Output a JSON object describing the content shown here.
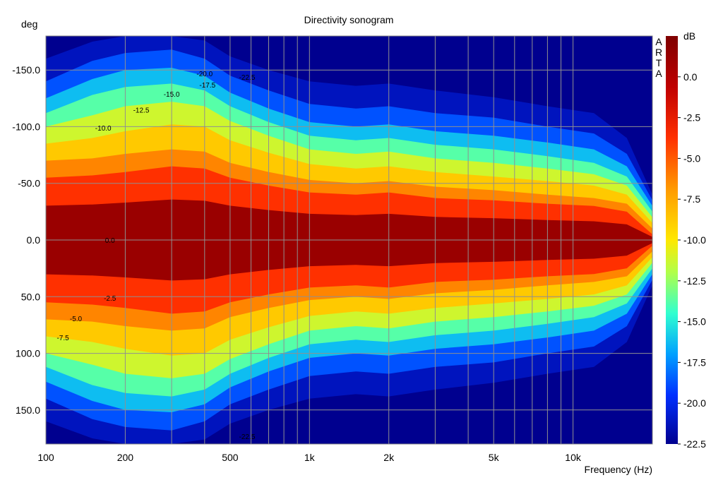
{
  "chart_data": {
    "type": "heatmap",
    "title": "Directivity sonogram",
    "xlabel": "Frequency (Hz)",
    "ylabel": "deg",
    "xscale": "log",
    "xlim": [
      100,
      20000
    ],
    "ylim": [
      180,
      -180
    ],
    "x_ticks": [
      {
        "value": 100,
        "label": "100"
      },
      {
        "value": 200,
        "label": "200"
      },
      {
        "value": 500,
        "label": "500"
      },
      {
        "value": 1000,
        "label": "1k"
      },
      {
        "value": 2000,
        "label": "2k"
      },
      {
        "value": 5000,
        "label": "5k"
      },
      {
        "value": 10000,
        "label": "10k"
      }
    ],
    "x_minor_gridlines": [
      300,
      400,
      600,
      700,
      800,
      900,
      3000,
      4000,
      6000,
      7000,
      8000,
      9000
    ],
    "y_ticks": [
      {
        "value": -150,
        "label": "-150.0"
      },
      {
        "value": -100,
        "label": "-100.0"
      },
      {
        "value": -50,
        "label": "-50.0"
      },
      {
        "value": 0,
        "label": "0.0"
      },
      {
        "value": 50,
        "label": "50.0"
      },
      {
        "value": 100,
        "label": "100.0"
      },
      {
        "value": 150,
        "label": "150.0"
      }
    ],
    "grid": true,
    "colorbar": {
      "unit": "dB",
      "range": [
        -22.5,
        2.5
      ],
      "tick_values": [
        0.0,
        -2.5,
        -5.0,
        -7.5,
        -10.0,
        -12.5,
        -15.0,
        -17.5,
        -20.0,
        -22.5
      ],
      "tick_labels": [
        "0.0",
        "-2.5",
        "-5.0",
        "-7.5",
        "-10.0",
        "-12.5",
        "-15.0",
        "-17.5",
        "-20.0",
        "-22.5"
      ],
      "colormap": "jet",
      "brand_letters": [
        "A",
        "R",
        "T",
        "A"
      ]
    },
    "level_boundaries_deg": {
      "freq_hz": [
        100,
        150,
        200,
        300,
        400,
        500,
        700,
        1000,
        1500,
        2000,
        3000,
        5000,
        8000,
        12000,
        16000,
        20000
      ],
      "levels_db": [
        -2.5,
        -5,
        -7.5,
        -10,
        -12.5,
        -15,
        -17.5,
        -20
      ],
      "angles": [
        [
          55,
          57,
          60,
          65,
          63,
          55,
          48,
          42,
          40,
          42,
          37,
          35,
          32,
          30,
          25,
          5
        ],
        [
          70,
          72,
          76,
          80,
          78,
          68,
          60,
          53,
          50,
          52,
          47,
          44,
          40,
          37,
          32,
          10
        ],
        [
          85,
          90,
          96,
          102,
          100,
          88,
          77,
          67,
          63,
          65,
          60,
          56,
          52,
          48,
          40,
          15
        ],
        [
          100,
          110,
          118,
          122,
          118,
          105,
          92,
          80,
          76,
          78,
          72,
          68,
          63,
          58,
          48,
          20
        ],
        [
          112,
          128,
          135,
          138,
          132,
          118,
          104,
          92,
          88,
          90,
          84,
          80,
          74,
          68,
          56,
          25
        ],
        [
          125,
          142,
          150,
          152,
          145,
          130,
          116,
          104,
          100,
          102,
          96,
          92,
          86,
          80,
          65,
          30
        ],
        [
          140,
          158,
          165,
          168,
          160,
          145,
          132,
          120,
          116,
          118,
          112,
          108,
          100,
          94,
          76,
          35
        ],
        [
          160,
          175,
          180,
          180,
          176,
          162,
          150,
          140,
          136,
          138,
          132,
          126,
          118,
          112,
          90,
          40
        ]
      ]
    },
    "contour_labels": [
      {
        "text": "-20.0",
        "freq": 400,
        "deg": -147
      },
      {
        "text": "-22.5",
        "freq": 580,
        "deg": -144
      },
      {
        "text": "-17.5",
        "freq": 410,
        "deg": -137
      },
      {
        "text": "-15.0",
        "freq": 300,
        "deg": -129
      },
      {
        "text": "-12.5",
        "freq": 230,
        "deg": -115
      },
      {
        "text": "-10.0",
        "freq": 165,
        "deg": -99
      },
      {
        "text": "0.0",
        "freq": 175,
        "deg": 0
      },
      {
        "text": "-2.5",
        "freq": 175,
        "deg": 51
      },
      {
        "text": "-5.0",
        "freq": 130,
        "deg": 69
      },
      {
        "text": "-7.5",
        "freq": 116,
        "deg": 86
      },
      {
        "text": "-22.5",
        "freq": 580,
        "deg": 173
      }
    ]
  }
}
